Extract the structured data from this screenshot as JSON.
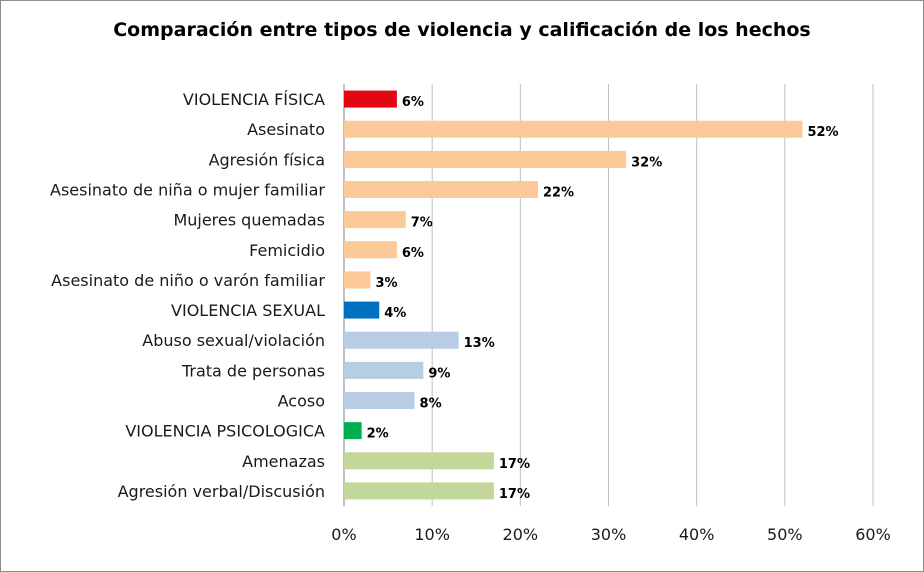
{
  "chart_data": {
    "type": "bar",
    "orientation": "horizontal",
    "title": "Comparación entre tipos de violencia y calificación de los hechos",
    "xlabel": "",
    "ylabel": "",
    "xlim": [
      0,
      60
    ],
    "x_ticks": [
      "0%",
      "10%",
      "20%",
      "30%",
      "40%",
      "50%",
      "60%"
    ],
    "grid": true,
    "categories": [
      "VIOLENCIA FÍSICA",
      "Asesinato",
      "Agresión física",
      "Asesinato de niña o mujer familiar",
      "Mujeres quemadas",
      "Femicidio",
      "Asesinato de niño o varón familiar",
      "VIOLENCIA SEXUAL",
      "Abuso sexual/violación",
      "Trata de personas",
      "Acoso",
      "VIOLENCIA PSICOLOGICA",
      "Amenazas",
      "Agresión verbal/Discusión"
    ],
    "values": [
      6,
      52,
      32,
      22,
      7,
      6,
      3,
      4,
      13,
      9,
      8,
      2,
      17,
      17
    ],
    "data_labels": [
      "6%",
      "52%",
      "32%",
      "22%",
      "7%",
      "6%",
      "3%",
      "4%",
      "13%",
      "9%",
      "8%",
      "2%",
      "17%",
      "17%"
    ],
    "colors": [
      "#e30613",
      "#fcc998",
      "#fcc998",
      "#fcc998",
      "#fcc998",
      "#fcc998",
      "#fcc998",
      "#0070c0",
      "#b8cce4",
      "#b8cce4",
      "#b8cce4",
      "#00b050",
      "#c4d79b",
      "#c4d79b"
    ]
  }
}
